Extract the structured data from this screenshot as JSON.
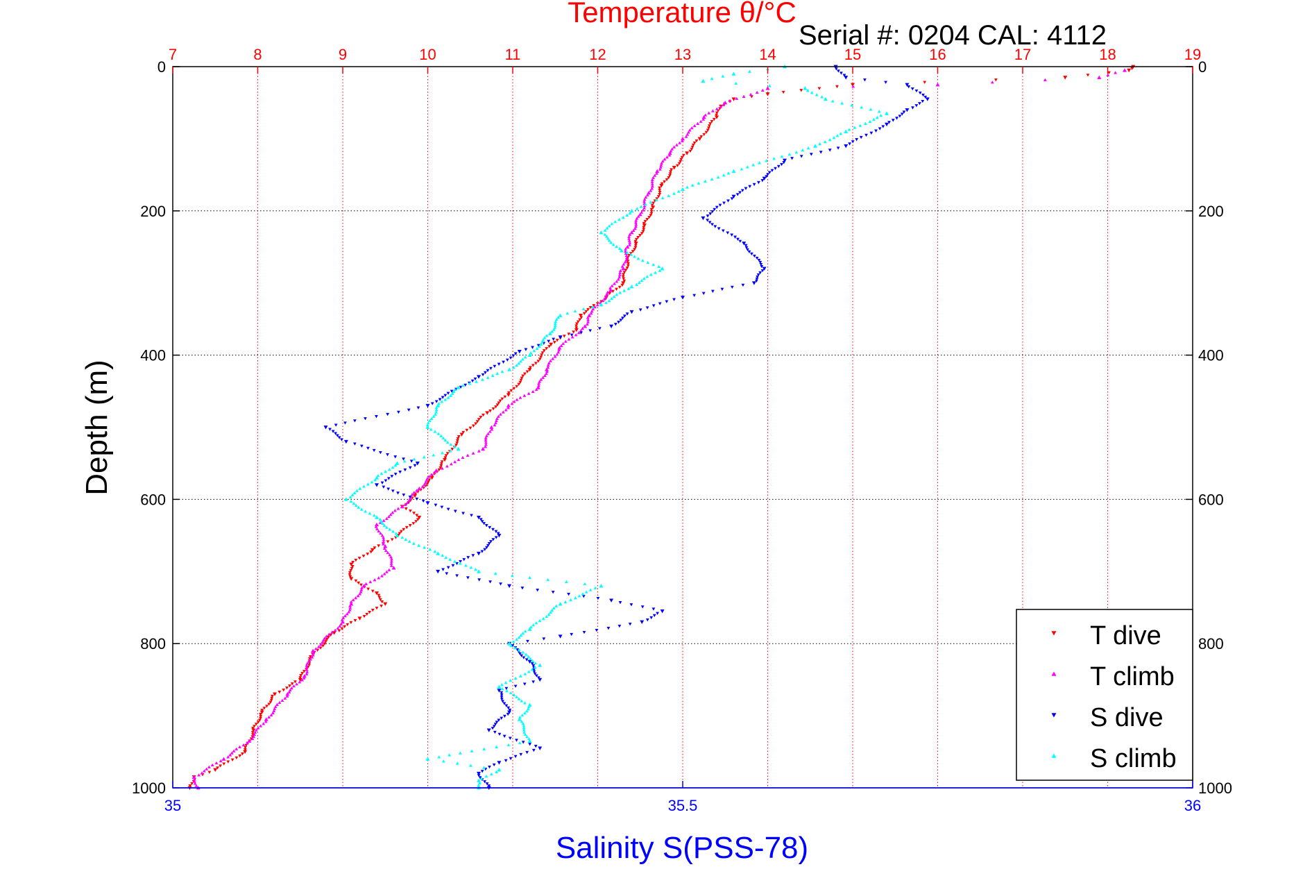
{
  "chart_data": {
    "type": "scatter",
    "title": "Temperature θ/°C",
    "annotation": "Serial #: 0204  CAL: 4112",
    "top_axis": {
      "label": "Temperature θ/°C",
      "range": [
        7,
        19
      ],
      "ticks": [
        "7",
        "8",
        "9",
        "10",
        "11",
        "12",
        "13",
        "14",
        "15",
        "16",
        "17",
        "18",
        "19"
      ],
      "color": "#ff0000"
    },
    "bottom_axis": {
      "label": "Salinity S(PSS-78)",
      "range": [
        35,
        36
      ],
      "ticks": [
        "35",
        "35.5",
        "36"
      ],
      "color": "#0000ff"
    },
    "y_axis": {
      "label": "Depth (m)",
      "range": [
        0,
        1000
      ],
      "reversed": true,
      "ticks": [
        "0",
        "200",
        "400",
        "600",
        "800",
        "1000"
      ]
    },
    "grid": true,
    "legend": {
      "placement": "bottom-right",
      "entries": [
        "T dive",
        "T climb",
        "S dive",
        "S climb"
      ]
    },
    "series": [
      {
        "name": "T dive",
        "axis": "top",
        "color": "#ff0000",
        "marker": "triangle-down",
        "points": [
          [
            18.3,
            0
          ],
          [
            18.25,
            5
          ],
          [
            17.5,
            15
          ],
          [
            15.0,
            25
          ],
          [
            14.0,
            38
          ],
          [
            13.6,
            45
          ],
          [
            13.45,
            55
          ],
          [
            13.4,
            70
          ],
          [
            13.2,
            100
          ],
          [
            13.05,
            120
          ],
          [
            12.9,
            140
          ],
          [
            12.75,
            165
          ],
          [
            12.65,
            195
          ],
          [
            12.55,
            220
          ],
          [
            12.45,
            245
          ],
          [
            12.35,
            270
          ],
          [
            12.3,
            300
          ],
          [
            12.1,
            320
          ],
          [
            11.8,
            345
          ],
          [
            11.75,
            365
          ],
          [
            11.45,
            385
          ],
          [
            11.2,
            420
          ],
          [
            10.95,
            455
          ],
          [
            10.7,
            480
          ],
          [
            10.4,
            510
          ],
          [
            10.2,
            545
          ],
          [
            10.05,
            570
          ],
          [
            9.85,
            595
          ],
          [
            9.7,
            610
          ],
          [
            9.9,
            625
          ],
          [
            9.65,
            650
          ],
          [
            9.35,
            670
          ],
          [
            9.1,
            690
          ],
          [
            9.1,
            710
          ],
          [
            9.4,
            730
          ],
          [
            9.5,
            745
          ],
          [
            9.2,
            765
          ],
          [
            8.9,
            785
          ],
          [
            8.65,
            815
          ],
          [
            8.5,
            850
          ],
          [
            8.2,
            870
          ],
          [
            8.05,
            895
          ],
          [
            7.95,
            920
          ],
          [
            7.85,
            950
          ],
          [
            7.5,
            975
          ],
          [
            7.25,
            985
          ],
          [
            7.2,
            1000
          ]
        ]
      },
      {
        "name": "T climb",
        "axis": "top",
        "color": "#ff00ff",
        "marker": "triangle-up",
        "points": [
          [
            18.2,
            5
          ],
          [
            17.9,
            15
          ],
          [
            16.0,
            25
          ],
          [
            14.0,
            30
          ],
          [
            13.5,
            50
          ],
          [
            13.25,
            70
          ],
          [
            13.0,
            100
          ],
          [
            12.85,
            120
          ],
          [
            12.7,
            145
          ],
          [
            12.6,
            175
          ],
          [
            12.5,
            205
          ],
          [
            12.4,
            230
          ],
          [
            12.35,
            250
          ],
          [
            12.3,
            280
          ],
          [
            12.15,
            310
          ],
          [
            11.9,
            345
          ],
          [
            11.85,
            360
          ],
          [
            11.55,
            390
          ],
          [
            11.4,
            420
          ],
          [
            11.3,
            445
          ],
          [
            10.95,
            470
          ],
          [
            10.75,
            500
          ],
          [
            10.65,
            530
          ],
          [
            10.1,
            560
          ],
          [
            9.9,
            585
          ],
          [
            9.7,
            610
          ],
          [
            9.4,
            635
          ],
          [
            9.5,
            665
          ],
          [
            9.6,
            695
          ],
          [
            9.25,
            720
          ],
          [
            9.1,
            745
          ],
          [
            9.0,
            770
          ],
          [
            8.65,
            810
          ],
          [
            8.55,
            845
          ],
          [
            8.35,
            870
          ],
          [
            8.1,
            905
          ],
          [
            7.9,
            935
          ],
          [
            7.6,
            960
          ],
          [
            7.25,
            985
          ],
          [
            7.3,
            1000
          ]
        ]
      },
      {
        "name": "S dive",
        "axis": "bottom",
        "color": "#0000ff",
        "marker": "triangle-down",
        "points": [
          [
            35.65,
            0
          ],
          [
            35.66,
            15
          ],
          [
            35.72,
            25
          ],
          [
            35.74,
            45
          ],
          [
            35.72,
            60
          ],
          [
            35.7,
            80
          ],
          [
            35.66,
            110
          ],
          [
            35.6,
            130
          ],
          [
            35.58,
            155
          ],
          [
            35.55,
            180
          ],
          [
            35.52,
            210
          ],
          [
            35.56,
            245
          ],
          [
            35.58,
            280
          ],
          [
            35.57,
            300
          ],
          [
            35.5,
            320
          ],
          [
            35.45,
            340
          ],
          [
            35.43,
            360
          ],
          [
            35.38,
            375
          ],
          [
            35.34,
            395
          ],
          [
            35.3,
            430
          ],
          [
            35.25,
            470
          ],
          [
            35.15,
            500
          ],
          [
            35.17,
            520
          ],
          [
            35.24,
            550
          ],
          [
            35.2,
            580
          ],
          [
            35.25,
            605
          ],
          [
            35.3,
            625
          ],
          [
            35.32,
            650
          ],
          [
            35.3,
            675
          ],
          [
            35.26,
            700
          ],
          [
            35.33,
            720
          ],
          [
            35.43,
            740
          ],
          [
            35.48,
            755
          ],
          [
            35.46,
            770
          ],
          [
            35.38,
            790
          ],
          [
            35.33,
            800
          ],
          [
            35.35,
            825
          ],
          [
            35.36,
            850
          ],
          [
            35.32,
            865
          ],
          [
            35.33,
            895
          ],
          [
            35.31,
            920
          ],
          [
            35.36,
            945
          ],
          [
            35.32,
            965
          ],
          [
            35.3,
            980
          ],
          [
            35.31,
            1000
          ]
        ]
      },
      {
        "name": "S climb",
        "axis": "bottom",
        "color": "#00ffff",
        "marker": "triangle-up",
        "points": [
          [
            35.6,
            0
          ],
          [
            35.55,
            10
          ],
          [
            35.52,
            20
          ],
          [
            35.62,
            30
          ],
          [
            35.64,
            45
          ],
          [
            35.7,
            65
          ],
          [
            35.66,
            90
          ],
          [
            35.63,
            110
          ],
          [
            35.55,
            145
          ],
          [
            35.5,
            170
          ],
          [
            35.45,
            200
          ],
          [
            35.42,
            230
          ],
          [
            35.44,
            255
          ],
          [
            35.48,
            280
          ],
          [
            35.45,
            305
          ],
          [
            35.42,
            330
          ],
          [
            35.38,
            345
          ],
          [
            35.37,
            370
          ],
          [
            35.35,
            400
          ],
          [
            35.33,
            420
          ],
          [
            35.28,
            445
          ],
          [
            35.26,
            470
          ],
          [
            35.25,
            500
          ],
          [
            35.28,
            530
          ],
          [
            35.22,
            550
          ],
          [
            35.2,
            570
          ],
          [
            35.17,
            600
          ],
          [
            35.2,
            625
          ],
          [
            35.22,
            650
          ],
          [
            35.26,
            675
          ],
          [
            35.3,
            700
          ],
          [
            35.42,
            720
          ],
          [
            35.38,
            745
          ],
          [
            35.35,
            780
          ],
          [
            35.33,
            800
          ],
          [
            35.36,
            830
          ],
          [
            35.32,
            860
          ],
          [
            35.35,
            885
          ],
          [
            35.34,
            905
          ],
          [
            35.35,
            935
          ],
          [
            35.25,
            960
          ],
          [
            35.32,
            975
          ],
          [
            35.3,
            990
          ],
          [
            35.3,
            1000
          ]
        ]
      }
    ]
  }
}
